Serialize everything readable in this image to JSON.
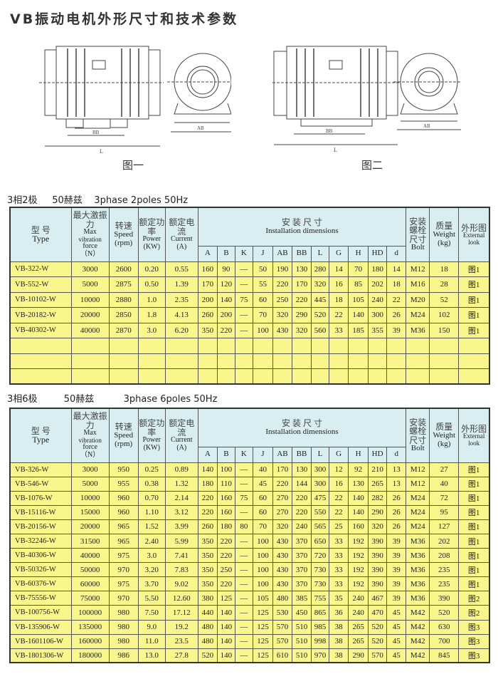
{
  "title": "VB振动电机外形尺寸和技术参数",
  "figures": [
    {
      "caption": "图一"
    },
    {
      "caption": "图二"
    }
  ],
  "header": {
    "type_cn": "型  号",
    "type_en": "Type",
    "force_cn": "最大激振力",
    "force_en1": "Max",
    "force_en2": "vibration",
    "force_en3": "force",
    "force_unit": "（N）",
    "speed_cn": "转速",
    "speed_en": "Speed",
    "speed_unit": "(rpm)",
    "power_cn": "额定功率",
    "power_en": "Power",
    "power_unit": "(KW)",
    "current_cn": "额定电流",
    "current_en": "Current",
    "current_unit": "(A)",
    "install_cn": "安 装 尺 寸",
    "install_en": "Installation dimensions",
    "dims": [
      "A",
      "B",
      "K",
      "J",
      "AB",
      "BB",
      "L",
      "G",
      "H",
      "HD",
      "d"
    ],
    "bolt_cn": "安装螺栓尺寸",
    "bolt_en": "Bolt",
    "weight_cn": "质量",
    "weight_en": "Weight",
    "weight_unit": "(kg)",
    "look_cn": "外形图",
    "look_en1": "External",
    "look_en2": "look"
  },
  "tables": [
    {
      "heading_cn": "3相2极",
      "heading_hz": "50赫兹",
      "heading_en": "3phase 2poles 50Hz",
      "empty_rows": 3,
      "rows": [
        [
          "VB-322-W",
          "3000",
          "2600",
          "0.20",
          "0.55",
          "160",
          "90",
          "—",
          "50",
          "190",
          "130",
          "280",
          "14",
          "70",
          "180",
          "14",
          "M12",
          "18",
          "图1"
        ],
        [
          "VB-552-W",
          "5000",
          "2875",
          "0.50",
          "1.39",
          "170",
          "120",
          "—",
          "55",
          "220",
          "170",
          "320",
          "16",
          "85",
          "202",
          "18",
          "M16",
          "28",
          "图1"
        ],
        [
          "VB-10102-W",
          "10000",
          "2880",
          "1.0",
          "2.35",
          "200",
          "140",
          "75",
          "60",
          "250",
          "220",
          "445",
          "18",
          "105",
          "240",
          "22",
          "M20",
          "52",
          "图1"
        ],
        [
          "VB-20182-W",
          "20000",
          "2850",
          "1.8",
          "4.13",
          "260",
          "200",
          "—",
          "70",
          "320",
          "290",
          "520",
          "22",
          "140",
          "300",
          "26",
          "M24",
          "102",
          "图1"
        ],
        [
          "VB-40302-W",
          "40000",
          "2870",
          "3.0",
          "6.20",
          "350",
          "220",
          "—",
          "100",
          "430",
          "320",
          "560",
          "33",
          "185",
          "355",
          "39",
          "M36",
          "150",
          "图1"
        ]
      ]
    },
    {
      "heading_cn": "3相6极",
      "heading_hz": "50赫兹",
      "heading_en": "3phase 6poles 50Hz",
      "empty_rows": 0,
      "rows": [
        [
          "VB-326-W",
          "3000",
          "950",
          "0.25",
          "0.89",
          "140",
          "100",
          "—",
          "40",
          "170",
          "130",
          "300",
          "12",
          "92",
          "210",
          "13",
          "M12",
          "27",
          "图1"
        ],
        [
          "VB-546-W",
          "5000",
          "955",
          "0.38",
          "1.32",
          "180",
          "110",
          "—",
          "45",
          "220",
          "144",
          "300",
          "16",
          "130",
          "265",
          "13",
          "M12",
          "40",
          "图1"
        ],
        [
          "VB-1076-W",
          "10000",
          "960",
          "0.70",
          "2.14",
          "220",
          "160",
          "75",
          "60",
          "270",
          "220",
          "475",
          "22",
          "140",
          "282",
          "26",
          "M24",
          "72",
          "图1"
        ],
        [
          "VB-15116-W",
          "15000",
          "960",
          "1.10",
          "3.12",
          "220",
          "160",
          "—",
          "60",
          "270",
          "220",
          "550",
          "22",
          "140",
          "290",
          "26",
          "M24",
          "95",
          "图1"
        ],
        [
          "VB-20156-W",
          "20000",
          "965",
          "1.52",
          "3.99",
          "260",
          "180",
          "80",
          "70",
          "320",
          "240",
          "565",
          "25",
          "160",
          "320",
          "26",
          "M24",
          "127",
          "图1"
        ],
        [
          "VB-32246-W",
          "31500",
          "965",
          "2.40",
          "5.99",
          "350",
          "220",
          "—",
          "100",
          "430",
          "370",
          "650",
          "33",
          "192",
          "390",
          "39",
          "M36",
          "202",
          "图1"
        ],
        [
          "VB-40306-W",
          "40000",
          "975",
          "3.0",
          "7.41",
          "350",
          "220",
          "—",
          "100",
          "430",
          "370",
          "720",
          "33",
          "192",
          "390",
          "39",
          "M36",
          "208",
          "图1"
        ],
        [
          "VB-50326-W",
          "50000",
          "970",
          "3.20",
          "7.83",
          "350",
          "250",
          "—",
          "100",
          "430",
          "370",
          "730",
          "33",
          "192",
          "390",
          "39",
          "M36",
          "235",
          "图1"
        ],
        [
          "VB-60376-W",
          "60000",
          "975",
          "3.70",
          "9.02",
          "350",
          "220",
          "—",
          "100",
          "430",
          "370",
          "730",
          "33",
          "192",
          "390",
          "39",
          "M36",
          "235",
          "图1"
        ],
        [
          "VB-75556-W",
          "75000",
          "970",
          "5.50",
          "12.60",
          "380",
          "125",
          "—",
          "105",
          "480",
          "385",
          "755",
          "35",
          "240",
          "467",
          "39",
          "M36",
          "390",
          "图2"
        ],
        [
          "VB-100756-W",
          "100000",
          "980",
          "7.50",
          "17.12",
          "440",
          "140",
          "—",
          "125",
          "530",
          "450",
          "865",
          "36",
          "240",
          "470",
          "45",
          "M42",
          "520",
          "图2"
        ],
        [
          "VB-135906-W",
          "135000",
          "980",
          "9.0",
          "19.2",
          "480",
          "140",
          "—",
          "125",
          "570",
          "510",
          "985",
          "38",
          "265",
          "520",
          "45",
          "M42",
          "630",
          "图3"
        ],
        [
          "VB-1601106-W",
          "160000",
          "980",
          "11.0",
          "23.5",
          "480",
          "140",
          "—",
          "125",
          "570",
          "510",
          "998",
          "38",
          "265",
          "520",
          "45",
          "M42",
          "700",
          "图3"
        ],
        [
          "VB-1801306-W",
          "180000",
          "986",
          "13.0",
          "27.8",
          "520",
          "140",
          "—",
          "125",
          "610",
          "510",
          "970",
          "38",
          "290",
          "570",
          "45",
          "M42",
          "845",
          "图3"
        ]
      ]
    }
  ],
  "colors": {
    "header_bg": "#d9eef0",
    "row_bg": "#f9f68c"
  }
}
